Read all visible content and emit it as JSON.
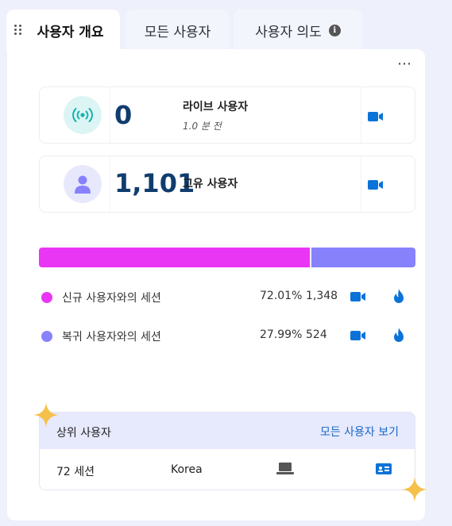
{
  "tabs": [
    {
      "label": "사용자 개요",
      "active": true
    },
    {
      "label": "모든 사용자",
      "active": false
    },
    {
      "label": "사용자 의도",
      "active": false
    }
  ],
  "tab_info_icon": "i",
  "more_menu": "⋯",
  "live_users": {
    "value": "0",
    "label": "라이브 사용자",
    "subtitle": "1.0 분 전",
    "icon": "broadcast-icon"
  },
  "unique_users": {
    "value": "1,101",
    "label": "고유 사용자",
    "icon": "user-icon"
  },
  "sessions_bar": {
    "new_fraction": 0.7201,
    "returning_fraction": 0.2799
  },
  "session_rows": [
    {
      "name": "신규 사용자와의 세션",
      "percent": "72.01%",
      "count": "1,348",
      "color": "#e936f5"
    },
    {
      "name": "복귀 사용자와의 세션",
      "percent": "27.99%",
      "count": "524",
      "color": "#8881fc"
    }
  ],
  "top_users": {
    "title": "상위 사용자",
    "view_all": "모든 사용자 보기",
    "rows": [
      {
        "sessions": "72 세션",
        "country": "Korea"
      }
    ]
  },
  "colors": {
    "accent": "#1667c6",
    "video": "#0b73d8",
    "flame": "#0b73d8",
    "new": "#e936f5",
    "returning": "#8881fc"
  }
}
